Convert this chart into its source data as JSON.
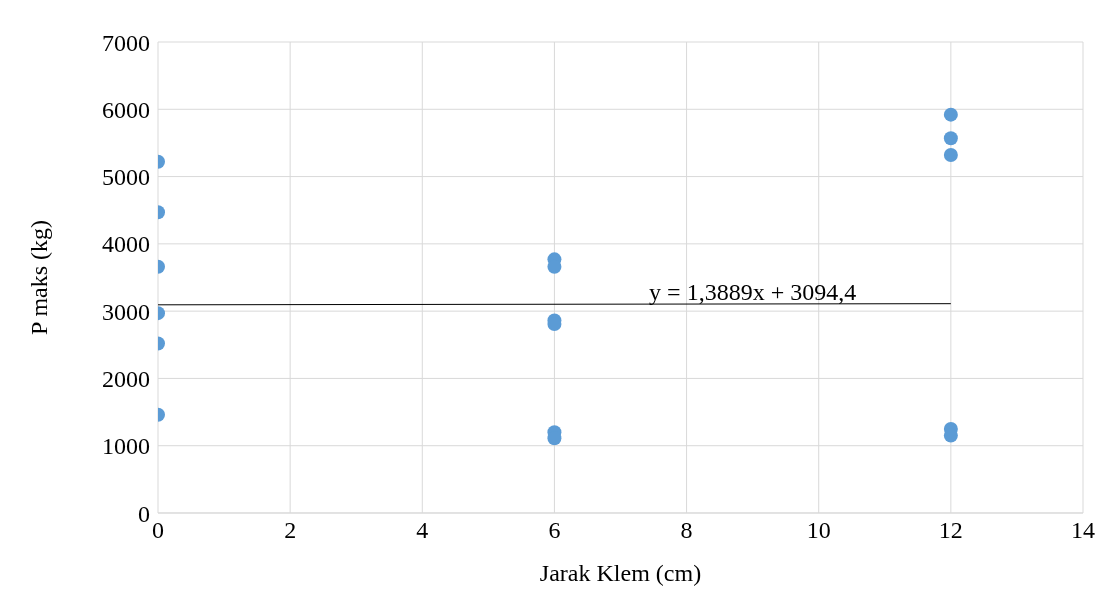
{
  "chart_data": {
    "type": "scatter",
    "xlabel": "Jarak Klem (cm)",
    "ylabel": "P maks (kg)",
    "xlim": [
      0,
      14
    ],
    "xticks": [
      0,
      2,
      4,
      6,
      8,
      10,
      12,
      14
    ],
    "ylim": [
      0,
      7000
    ],
    "yticks": [
      0,
      1000,
      2000,
      3000,
      4000,
      5000,
      6000,
      7000
    ],
    "grid": true,
    "series": [
      {
        "marker": "circle",
        "color": "#5b9bd5",
        "x": [
          0,
          0,
          0,
          0,
          0,
          0,
          6,
          6,
          6,
          6,
          6,
          6,
          12,
          12,
          12,
          12,
          12
        ],
        "values": [
          5220,
          4470,
          3660,
          2970,
          2520,
          1460,
          3770,
          3660,
          2860,
          2810,
          1200,
          1110,
          5920,
          5570,
          5320,
          1250,
          1150
        ]
      },
      {
        "type": "line",
        "marker": "none",
        "color": "#000000",
        "x": [
          0,
          12
        ],
        "values": [
          3094,
          3111
        ]
      }
    ],
    "annotations": [
      {
        "text": "y = 1,3889x + 3094,4",
        "x": 9,
        "y": 3107
      }
    ]
  }
}
